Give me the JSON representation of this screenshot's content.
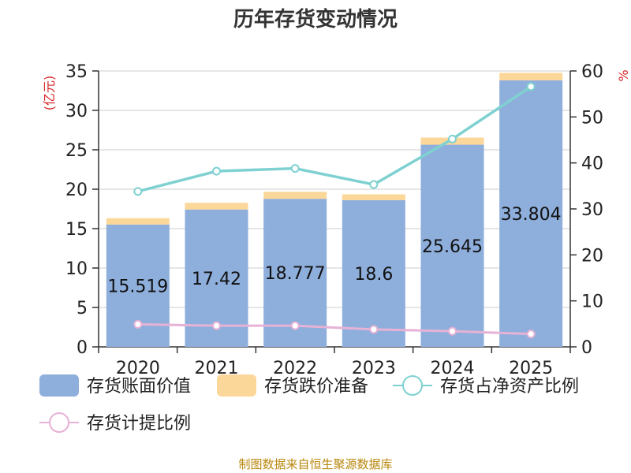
{
  "chart_data": {
    "type": "bar",
    "title": "历年存货变动情况",
    "categories": [
      "2020",
      "2021",
      "2022",
      "2023",
      "2024",
      "2025"
    ],
    "series": [
      {
        "name": "存货账面价值",
        "kind": "bar",
        "axis": "left",
        "stack": "main",
        "color": "#8eaedb",
        "values": [
          15.519,
          17.42,
          18.777,
          18.6,
          25.645,
          33.804
        ],
        "labels": [
          "15.519",
          "17.42",
          "18.777",
          "18.6",
          "25.645",
          "33.804"
        ]
      },
      {
        "name": "存货跌价准备",
        "kind": "bar",
        "axis": "left",
        "stack": "main",
        "color": "#fbd79a",
        "values": [
          0.8,
          0.85,
          0.9,
          0.75,
          0.9,
          0.95
        ]
      },
      {
        "name": "存货占净资产比例",
        "kind": "line",
        "axis": "right",
        "color": "#7fd1d1",
        "values": [
          33.8,
          38.2,
          38.8,
          35.3,
          45.2,
          56.6
        ]
      },
      {
        "name": "存货计提比例",
        "kind": "line",
        "axis": "right",
        "color": "#e6b2d6",
        "values": [
          4.9,
          4.6,
          4.6,
          3.8,
          3.4,
          2.8
        ]
      }
    ],
    "y_left": {
      "label": "(亿元)",
      "min": 0,
      "max": 35,
      "ticks": [
        0,
        5,
        10,
        15,
        20,
        25,
        30,
        35
      ]
    },
    "y_right": {
      "label": "%",
      "min": 0,
      "max": 60,
      "ticks": [
        0,
        10,
        20,
        30,
        40,
        50,
        60
      ]
    },
    "legend_position": "bottom-left",
    "grid": true,
    "source_note": "制图数据来自恒生聚源数据库"
  }
}
